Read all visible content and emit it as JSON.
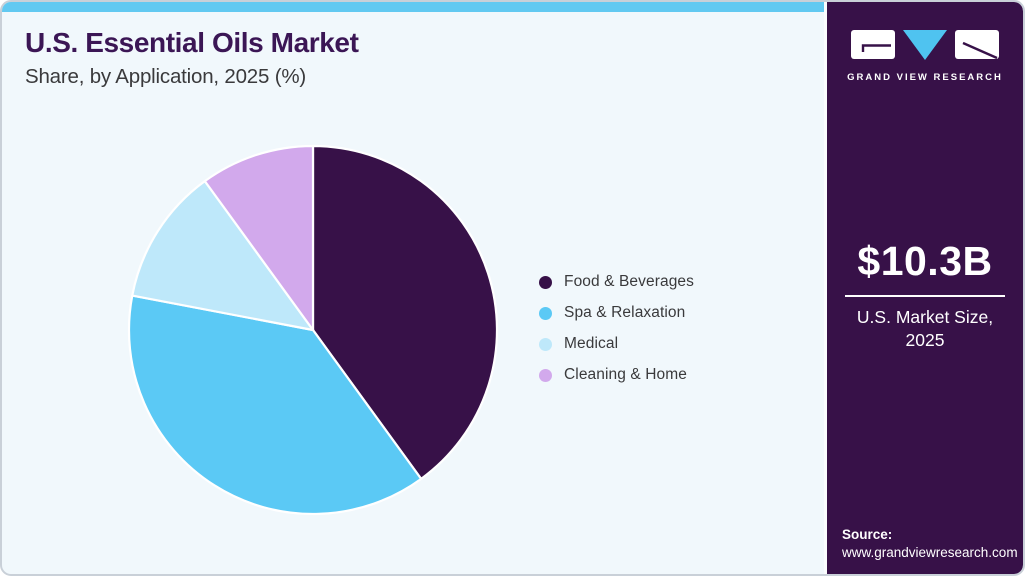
{
  "header": {
    "title": "U.S. Essential Oils Market",
    "subtitle": "Share, by Application, 2025 (%)"
  },
  "chart_data": {
    "type": "pie",
    "title": "U.S. Essential Oils Market Share, by Application, 2025 (%)",
    "unit": "%",
    "start_angle_deg": 0,
    "direction": "clockwise",
    "legend_position": "right",
    "slices": [
      {
        "label": "Food & Beverages",
        "value": 40,
        "color": "#371148"
      },
      {
        "label": "Spa & Relaxation",
        "value": 38,
        "color": "#5bc9f5"
      },
      {
        "label": "Medical",
        "value": 12,
        "color": "#bee8fa"
      },
      {
        "label": "Cleaning & Home",
        "value": 10,
        "color": "#d2a9ec"
      }
    ]
  },
  "sidebar": {
    "brand": "GRAND VIEW RESEARCH",
    "market_value": "$10.3B",
    "market_label": "U.S. Market Size, 2025",
    "source_label": "Source:",
    "source_url": "www.grandviewresearch.com"
  },
  "colors": {
    "accent_bar": "#62c9f1",
    "sidebar_bg": "#371148",
    "card_bg": "#f1f8fc",
    "title": "#3b1655",
    "text": "#3a3a3c",
    "logo_triangle": "#4fc3f0"
  }
}
